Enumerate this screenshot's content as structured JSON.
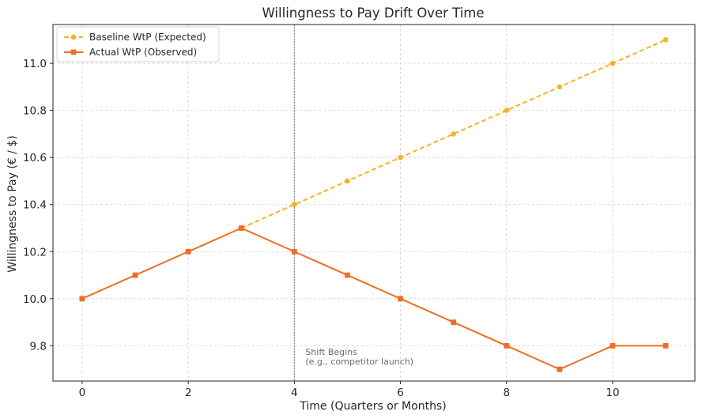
{
  "chart_data": {
    "type": "line",
    "title": "Willingness to Pay Drift Over Time",
    "xlabel": "Time (Quarters or Months)",
    "ylabel": "Willingness to Pay (€ / $)",
    "x": [
      0,
      1,
      2,
      3,
      4,
      5,
      6,
      7,
      8,
      9,
      10,
      11
    ],
    "xlim": [
      -0.55,
      11.55
    ],
    "ylim": [
      9.65,
      11.165
    ],
    "xticks": [
      0,
      2,
      4,
      6,
      8,
      10
    ],
    "yticks": [
      9.8,
      10.0,
      10.2,
      10.4,
      10.6,
      10.8,
      11.0
    ],
    "grid": true,
    "legend_position": "top-left",
    "series": [
      {
        "name": "Baseline WtP (Expected)",
        "values": [
          null,
          null,
          null,
          10.3,
          10.4,
          10.5,
          10.6,
          10.7,
          10.8,
          10.9,
          11.0,
          11.1
        ],
        "color": "#f5b324",
        "line_style": "dashed",
        "marker": "circle"
      },
      {
        "name": "Actual WtP (Observed)",
        "values": [
          10.0,
          10.1,
          10.2,
          10.3,
          10.2,
          10.1,
          10.0,
          9.9,
          9.8,
          9.7,
          9.8,
          9.8
        ],
        "color": "#ee6e25",
        "line_style": "solid",
        "marker": "square"
      }
    ],
    "vline": {
      "x": 4,
      "color": "#8c8c8c",
      "annotation": [
        "Shift Begins",
        "(e.g., competitor launch)"
      ]
    }
  }
}
